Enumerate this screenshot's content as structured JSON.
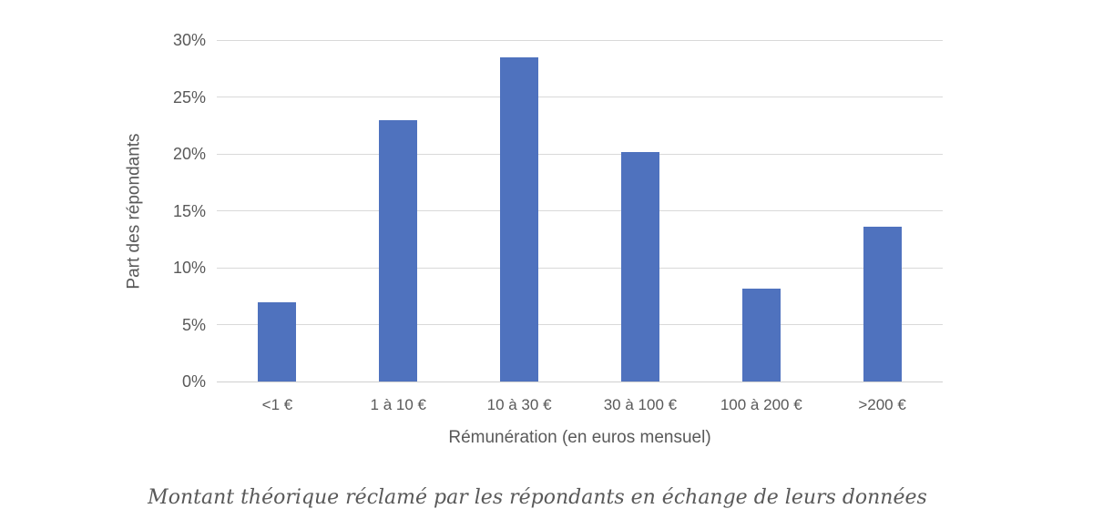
{
  "chart_data": {
    "type": "bar",
    "title": "Montant théorique réclamé par les répondants en échange de leurs données",
    "xlabel": "Rémunération (en euros mensuel)",
    "ylabel": "Part des répondants",
    "categories": [
      "<1 €",
      "1 à 10 €",
      "10 à 30 €",
      "30 à 100 €",
      "100 à 200 €",
      ">200 €"
    ],
    "values": [
      7,
      23,
      28.5,
      20.2,
      8.2,
      13.6
    ],
    "ylim": [
      0,
      30
    ],
    "ystep": 5,
    "ytick_labels": [
      "0%",
      "5%",
      "10%",
      "15%",
      "20%",
      "25%",
      "30%"
    ],
    "grid": "horizontal",
    "legend": "none",
    "colors": {
      "bar": "#4f72be",
      "gridline": "#d9d9d9",
      "baseline": "#cfcfcf",
      "axis_text": "#595959",
      "caption_text": "#595959",
      "background": "#ffffff"
    }
  }
}
